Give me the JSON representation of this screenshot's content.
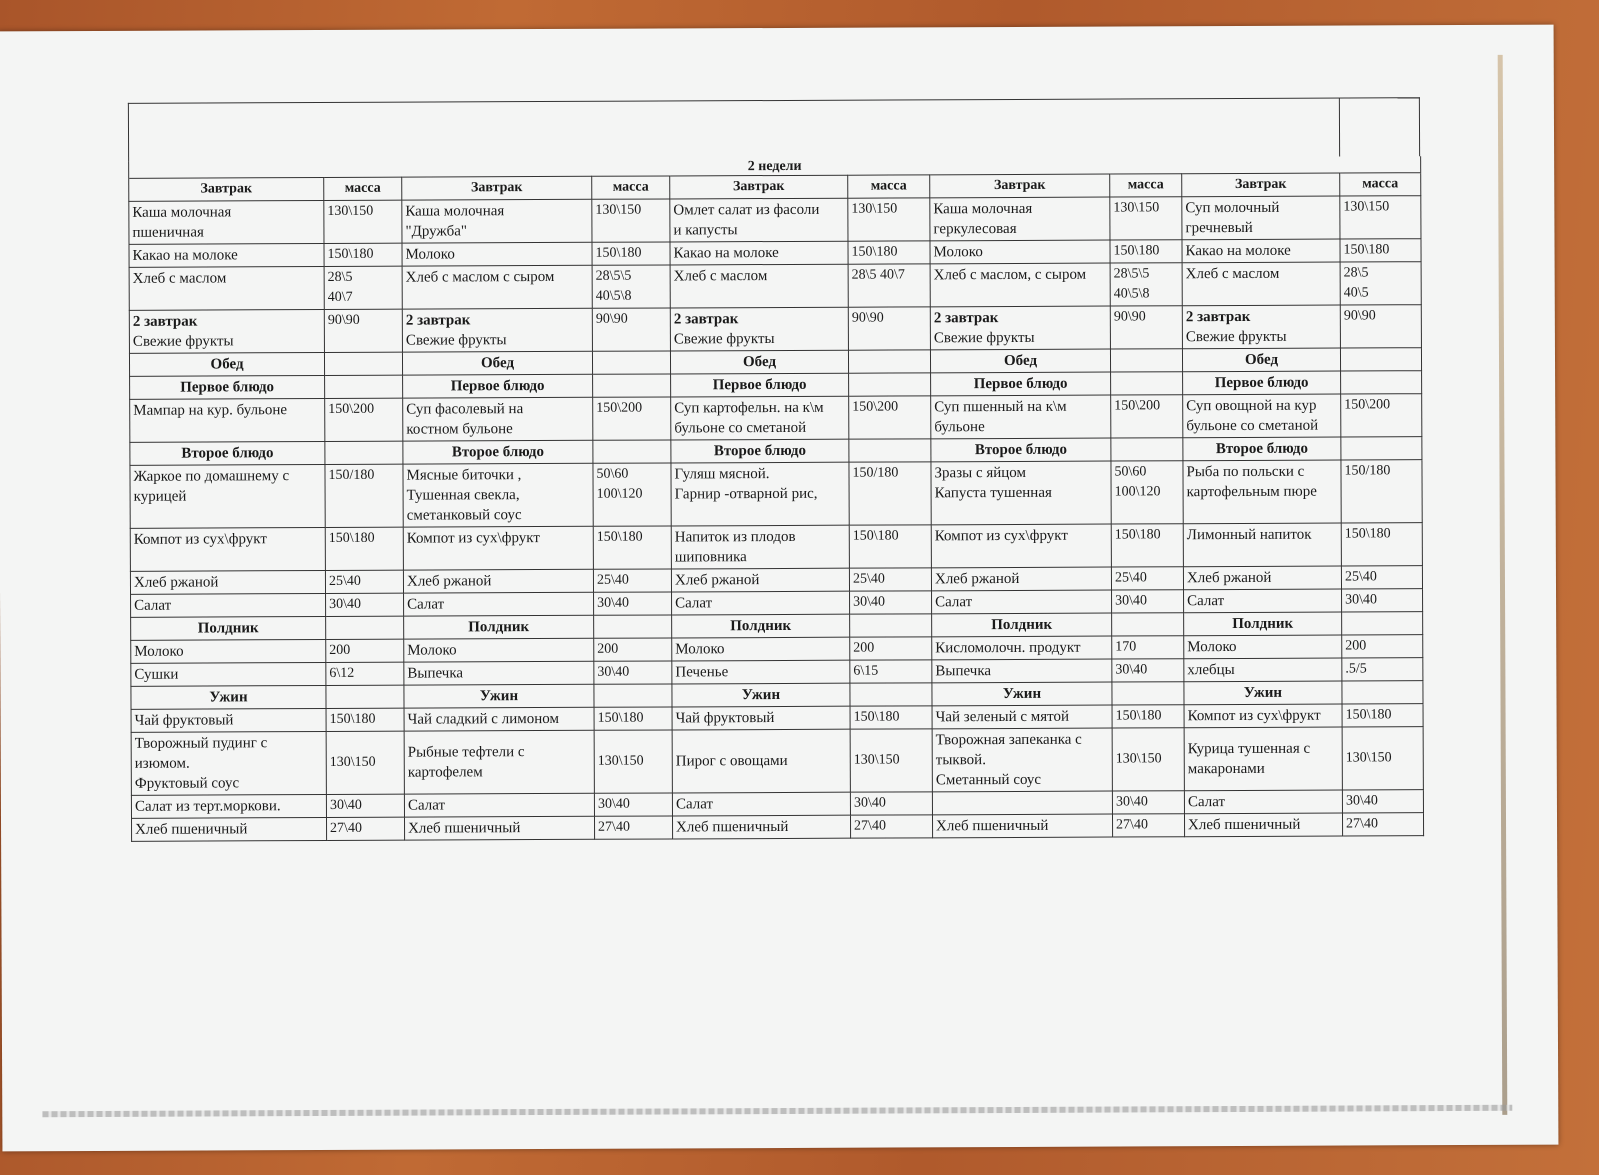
{
  "document": {
    "title": "2 недели",
    "header": [
      [
        "Завтрак",
        "масса"
      ],
      [
        "Завтрак",
        "масса"
      ],
      [
        "Завтрак",
        "масса"
      ],
      [
        "Завтрак",
        "масса"
      ],
      [
        "Завтрак",
        "масса"
      ]
    ],
    "rows": [
      {
        "cells": [
          [
            "Каша  молочная\nпшеничная",
            "130\\150"
          ],
          [
            "Каша молочная\n\"Дружба\"",
            "130\\150"
          ],
          [
            "Омлет  салат из фасоли\nи капусты",
            "130\\150"
          ],
          [
            "Каша молочная\nгеркулесовая",
            "130\\150"
          ],
          [
            "Суп молочный\nгречневый",
            "130\\150"
          ]
        ]
      },
      {
        "cells": [
          [
            "Какао  на молоке",
            "150\\180"
          ],
          [
            "Молоко",
            "150\\180"
          ],
          [
            "Какао  на молоке",
            "150\\180"
          ],
          [
            "Молоко",
            "150\\180"
          ],
          [
            "Какао  на молоке",
            "150\\180"
          ]
        ]
      },
      {
        "cells": [
          [
            "Хлеб с маслом",
            "28\\5\n40\\7"
          ],
          [
            "Хлеб с маслом  с сыром",
            "28\\5\\5\n40\\5\\8"
          ],
          [
            "Хлеб с маслом",
            "28\\5     40\\7"
          ],
          [
            "Хлеб с маслом, с сыром",
            "28\\5\\5\n40\\5\\8"
          ],
          [
            "Хлеб с маслом",
            "28\\5\n40\\5"
          ]
        ]
      },
      {
        "cells": [
          [
            "2 завтрак|Свежие фрукты",
            "90\\90"
          ],
          [
            "2 завтрак|Свежие фрукты",
            "90\\90"
          ],
          [
            "2 завтрак|Свежие фрукты",
            "90\\90"
          ],
          [
            "2 завтрак|Свежие фрукты",
            "90\\90"
          ],
          [
            "2 завтрак|Свежие фрукты",
            "90\\90"
          ]
        ],
        "split": true
      },
      {
        "section": "Обед"
      },
      {
        "section": "Первое блюдо"
      },
      {
        "cells": [
          [
            "Мампар на кур. бульоне",
            "150\\200"
          ],
          [
            "Суп фасолевый  на\nкостном  бульоне",
            "150\\200"
          ],
          [
            " Суп картофельн. на к\\м\nбульоне со сметаной",
            "150\\200"
          ],
          [
            "Суп пшенный на к\\м\nбульоне",
            "150\\200"
          ],
          [
            "Суп овощной на кур\nбульоне со сметаной",
            "150\\200"
          ]
        ]
      },
      {
        "section": "Второе блюдо"
      },
      {
        "cells": [
          [
            "Жаркое по домашнему с\nкурицей",
            "150/180"
          ],
          [
            "Мясные биточки ,\nТушенная свекла,\nсметанковый соус",
            "50\\60\n100\\120"
          ],
          [
            "Гуляш мясной.\nГарнир -отварной рис,",
            "150/180"
          ],
          [
            "Зразы с яйцом\nКапуста тушенная",
            "50\\60\n100\\120"
          ],
          [
            "Рыба по польски с\nкартофельным пюре",
            "150/180"
          ]
        ]
      },
      {
        "cells": [
          [
            "Компот из сух\\фрукт",
            "150\\180"
          ],
          [
            "Компот из сух\\фрукт",
            "150\\180"
          ],
          [
            "Напиток из плодов\nшиповника",
            "150\\180"
          ],
          [
            "Компот из сух\\фрукт",
            "150\\180"
          ],
          [
            "Лимонный напиток",
            "150\\180"
          ]
        ]
      },
      {
        "cells": [
          [
            "Хлеб ржаной",
            "25\\40"
          ],
          [
            "Хлеб ржаной",
            "25\\40"
          ],
          [
            "Хлеб ржаной",
            "25\\40"
          ],
          [
            "Хлеб ржаной",
            "25\\40"
          ],
          [
            "Хлеб ржаной",
            "25\\40"
          ]
        ]
      },
      {
        "cells": [
          [
            "Салат",
            "30\\40"
          ],
          [
            "Салат",
            "30\\40"
          ],
          [
            "Салат",
            "30\\40"
          ],
          [
            "Салат",
            "30\\40"
          ],
          [
            "Салат",
            "30\\40"
          ]
        ]
      },
      {
        "section": "Полдник"
      },
      {
        "cells": [
          [
            "Молоко",
            "200"
          ],
          [
            "Молоко",
            "200"
          ],
          [
            "Молоко",
            "200"
          ],
          [
            "Кисломолочн. продукт",
            "170"
          ],
          [
            "Молоко",
            "200"
          ]
        ]
      },
      {
        "cells": [
          [
            "Сушки",
            "6\\12"
          ],
          [
            "Выпечка",
            "30\\40"
          ],
          [
            "Печенье",
            "6\\15"
          ],
          [
            "Выпечка",
            "30\\40"
          ],
          [
            "хлебцы",
            ".5/5"
          ]
        ]
      },
      {
        "section": "Ужин"
      },
      {
        "cells": [
          [
            "Чай фруктовый",
            "150\\180"
          ],
          [
            "Чай сладкий с лимоном",
            "150\\180"
          ],
          [
            "Чай фруктовый",
            "150\\180"
          ],
          [
            "Чай зеленый с мятой",
            "150\\180"
          ],
          [
            "Компот из сух\\фрукт",
            "150\\180"
          ]
        ]
      },
      {
        "cells": [
          [
            "Творожный пудинг  с\nизюмом.\nФруктовый соус",
            "130\\150"
          ],
          [
            "Рыбные тефтели с\nкартофелем",
            "130\\150"
          ],
          [
            "Пирог с овощами",
            "130\\150"
          ],
          [
            "Творожная запеканка  с\nтыквой.\nСметанный соус",
            "130\\150"
          ],
          [
            "Курица тушенная с\nмакаронами",
            "130\\150"
          ]
        ],
        "middle": true
      },
      {
        "cells": [
          [
            "Салат из терт.моркови.",
            "30\\40"
          ],
          [
            "Салат",
            "30\\40"
          ],
          [
            "Салат",
            "30\\40"
          ],
          [
            "",
            "30\\40"
          ],
          [
            "Салат",
            "30\\40"
          ]
        ]
      },
      {
        "cells": [
          [
            "Хлеб пшеничный",
            "27\\40"
          ],
          [
            "Хлеб пшеничный",
            "27\\40"
          ],
          [
            "Хлеб пшеничный",
            "27\\40"
          ],
          [
            "Хлеб пшеничный",
            "27\\40"
          ],
          [
            "Хлеб пшеничный",
            "27\\40"
          ]
        ]
      }
    ]
  }
}
